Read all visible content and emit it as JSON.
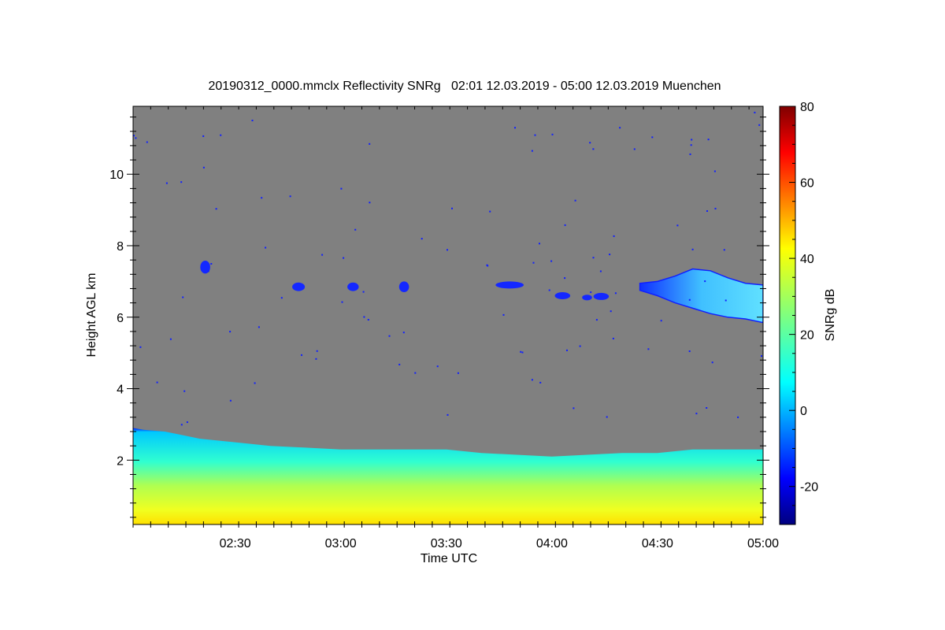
{
  "chart_data": {
    "type": "heatmap",
    "title": "20190312_0000.mmclx Reflectivity SNRg   02:01 12.03.2019 - 05:00 12.03.2019 Muenchen",
    "xlabel": "Time UTC",
    "ylabel": "Height AGL km",
    "colorbar_label": "SNRg dB",
    "xlim_minutes": [
      121,
      300
    ],
    "ylim_km": [
      0.2,
      11.9
    ],
    "x_ticks": [
      {
        "minutes": 150,
        "label": "02:30"
      },
      {
        "minutes": 180,
        "label": "03:00"
      },
      {
        "minutes": 210,
        "label": "03:30"
      },
      {
        "minutes": 240,
        "label": "04:00"
      },
      {
        "minutes": 270,
        "label": "04:30"
      },
      {
        "minutes": 300,
        "label": "05:00"
      }
    ],
    "y_ticks": [
      {
        "km": 2,
        "label": "2"
      },
      {
        "km": 4,
        "label": "4"
      },
      {
        "km": 6,
        "label": "6"
      },
      {
        "km": 8,
        "label": "8"
      },
      {
        "km": 10,
        "label": "10"
      }
    ],
    "colorbar_range_db": [
      -30,
      80
    ],
    "colorbar_ticks": [
      {
        "db": -20,
        "label": "-20"
      },
      {
        "db": 0,
        "label": "0"
      },
      {
        "db": 20,
        "label": "20"
      },
      {
        "db": 40,
        "label": "40"
      },
      {
        "db": 60,
        "label": "60"
      },
      {
        "db": 80,
        "label": "80"
      }
    ],
    "background_color": "#808080",
    "features": {
      "boundary_layer_top_km": [
        [
          121,
          2.9
        ],
        [
          124,
          2.85
        ],
        [
          130,
          2.8
        ],
        [
          135,
          2.7
        ],
        [
          140,
          2.6
        ],
        [
          150,
          2.5
        ],
        [
          160,
          2.4
        ],
        [
          170,
          2.35
        ],
        [
          180,
          2.3
        ],
        [
          190,
          2.3
        ],
        [
          200,
          2.3
        ],
        [
          210,
          2.3
        ],
        [
          220,
          2.2
        ],
        [
          230,
          2.15
        ],
        [
          240,
          2.1
        ],
        [
          250,
          2.15
        ],
        [
          260,
          2.2
        ],
        [
          270,
          2.2
        ],
        [
          280,
          2.3
        ],
        [
          290,
          2.3
        ],
        [
          300,
          2.3
        ]
      ],
      "cirrus_patches": [
        {
          "t": 141.5,
          "h": 7.4,
          "dt": 1.4,
          "dh": 0.18
        },
        {
          "t": 168,
          "h": 6.85,
          "dt": 1.8,
          "dh": 0.12
        },
        {
          "t": 183.5,
          "h": 6.85,
          "dt": 1.6,
          "dh": 0.12
        },
        {
          "t": 198,
          "h": 6.85,
          "dt": 1.4,
          "dh": 0.15
        },
        {
          "t": 228,
          "h": 6.9,
          "dt": 4.0,
          "dh": 0.1
        },
        {
          "t": 243,
          "h": 6.6,
          "dt": 2.2,
          "dh": 0.1
        },
        {
          "t": 250,
          "h": 6.55,
          "dt": 1.4,
          "dh": 0.08
        },
        {
          "t": 254,
          "h": 6.58,
          "dt": 2.2,
          "dh": 0.1
        }
      ],
      "cirrus_layer": {
        "top_km": [
          [
            265,
            6.95
          ],
          [
            270,
            7.0
          ],
          [
            275,
            7.15
          ],
          [
            280,
            7.35
          ],
          [
            285,
            7.3
          ],
          [
            290,
            7.1
          ],
          [
            295,
            6.95
          ],
          [
            300,
            6.9
          ]
        ],
        "bottom_km": [
          [
            300,
            5.85
          ],
          [
            295,
            5.95
          ],
          [
            290,
            6.0
          ],
          [
            285,
            6.1
          ],
          [
            280,
            6.25
          ],
          [
            275,
            6.4
          ],
          [
            270,
            6.6
          ],
          [
            265,
            6.75
          ]
        ]
      }
    }
  }
}
